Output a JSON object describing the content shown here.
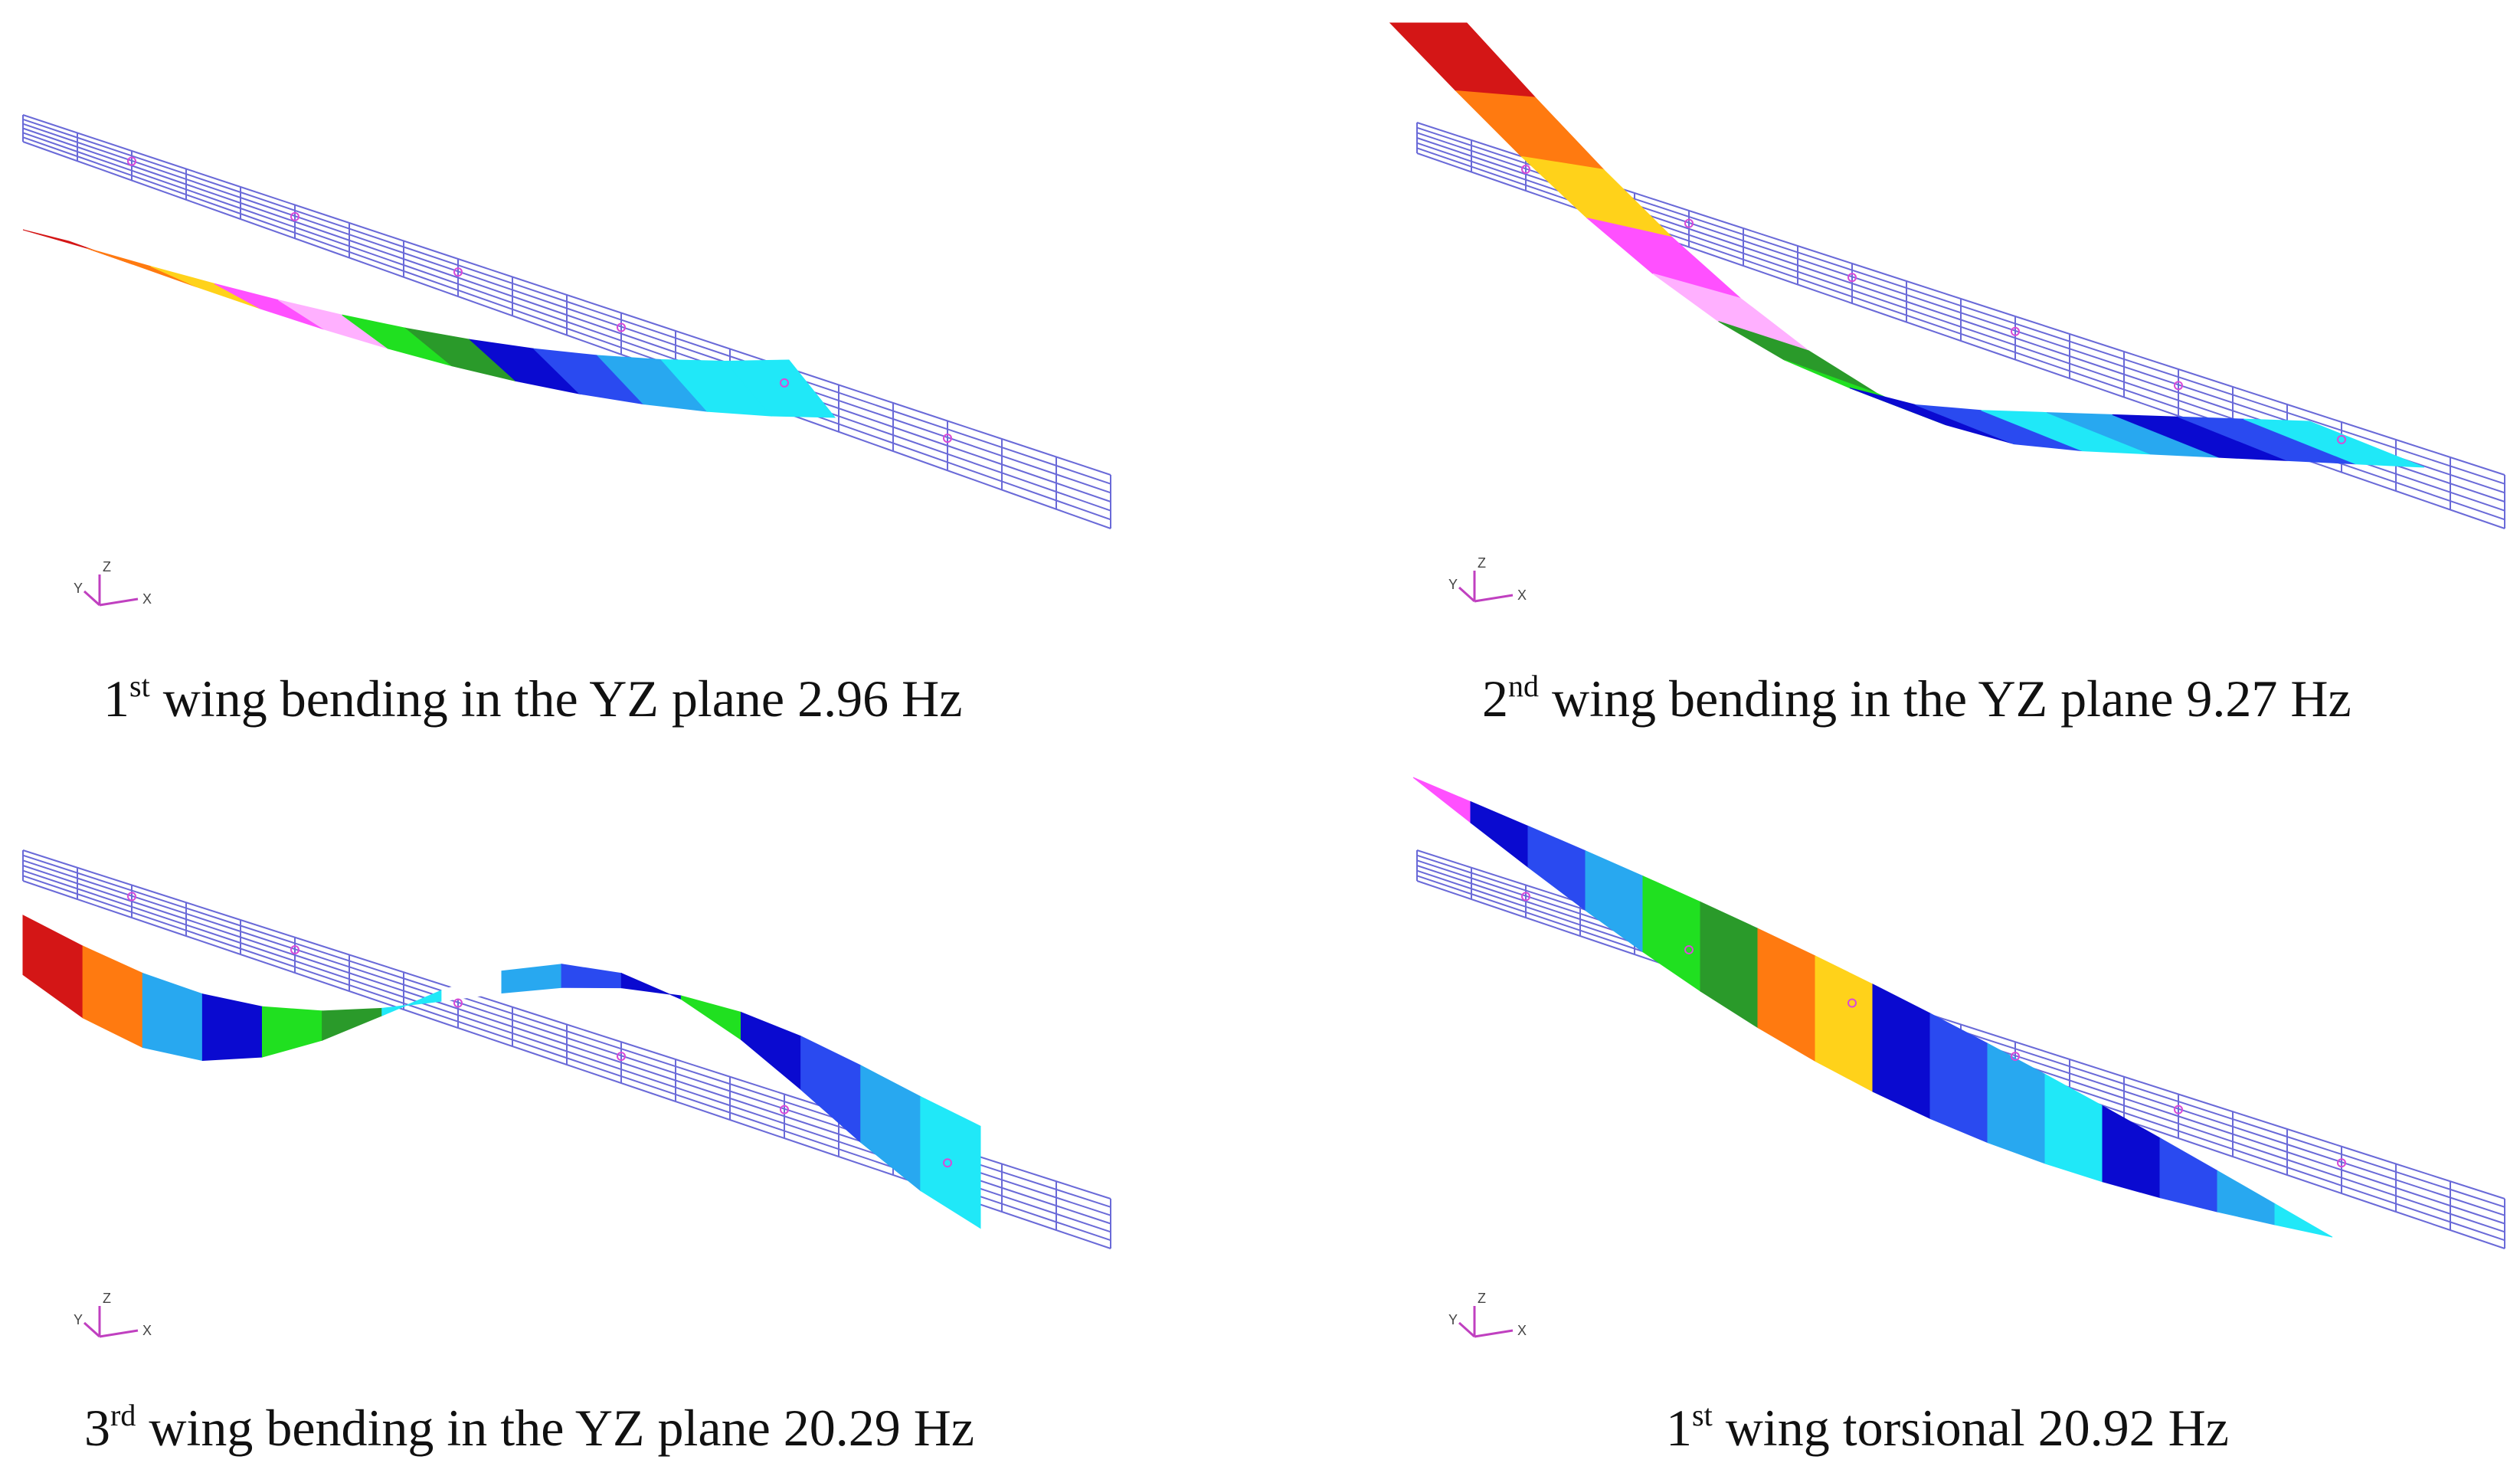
{
  "colors": {
    "mesh": "#6a6ad8",
    "node": "#d84ad8",
    "contour": [
      "#d41616",
      "#ff7a10",
      "#ffd21a",
      "#ff50ff",
      "#ffb0ff",
      "#2a9a2a",
      "#20e020",
      "#0a0ad0",
      "#2a4af0",
      "#28a8f0",
      "#20e8f8",
      "#ffffff"
    ]
  },
  "axis_triad": {
    "labels": {
      "z": "Z",
      "y": "Y",
      "x": "X"
    }
  },
  "modes": [
    {
      "ordinal": "1",
      "suffix": "st",
      "text": " wing bending in the YZ plane 2.96 Hz"
    },
    {
      "ordinal": "2",
      "suffix": "nd",
      "text": " wing bending in the YZ plane 9.27 Hz"
    },
    {
      "ordinal": "3",
      "suffix": "rd",
      "text": " wing bending in the YZ plane 20.29 Hz"
    },
    {
      "ordinal": "1",
      "suffix": "st",
      "text": " wing torsional 20.92 Hz"
    }
  ]
}
